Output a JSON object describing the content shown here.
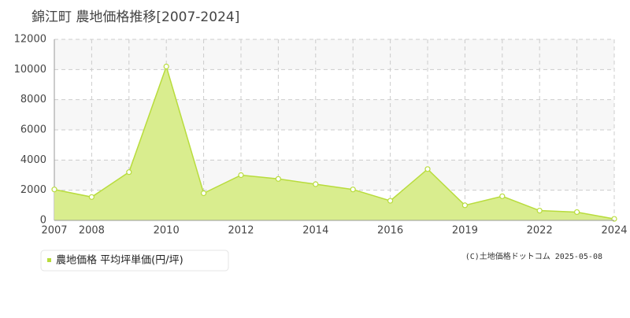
{
  "chart_data": {
    "type": "area",
    "title": "錦江町 農地価格推移[2007-2024]",
    "categories": [
      "2007",
      "2008",
      null,
      "2010",
      null,
      "2012",
      null,
      "2014",
      null,
      "2016",
      null,
      "2019",
      null,
      "2022",
      null,
      "2024"
    ],
    "series": [
      {
        "name": "農地価格 平均坪単価(円/坪)",
        "color": "#b8dc3c",
        "fill": "#d9ed8e",
        "values": [
          2050,
          1550,
          3200,
          10200,
          1800,
          3000,
          2750,
          2400,
          2050,
          1300,
          3400,
          1000,
          1600,
          650,
          550,
          100
        ]
      }
    ],
    "ylim": [
      0,
      12000
    ],
    "yticks": [
      0,
      2000,
      4000,
      6000,
      8000,
      10000,
      12000
    ],
    "grid": true,
    "footer": "(C)土地価格ドットコム 2025-05-08"
  }
}
